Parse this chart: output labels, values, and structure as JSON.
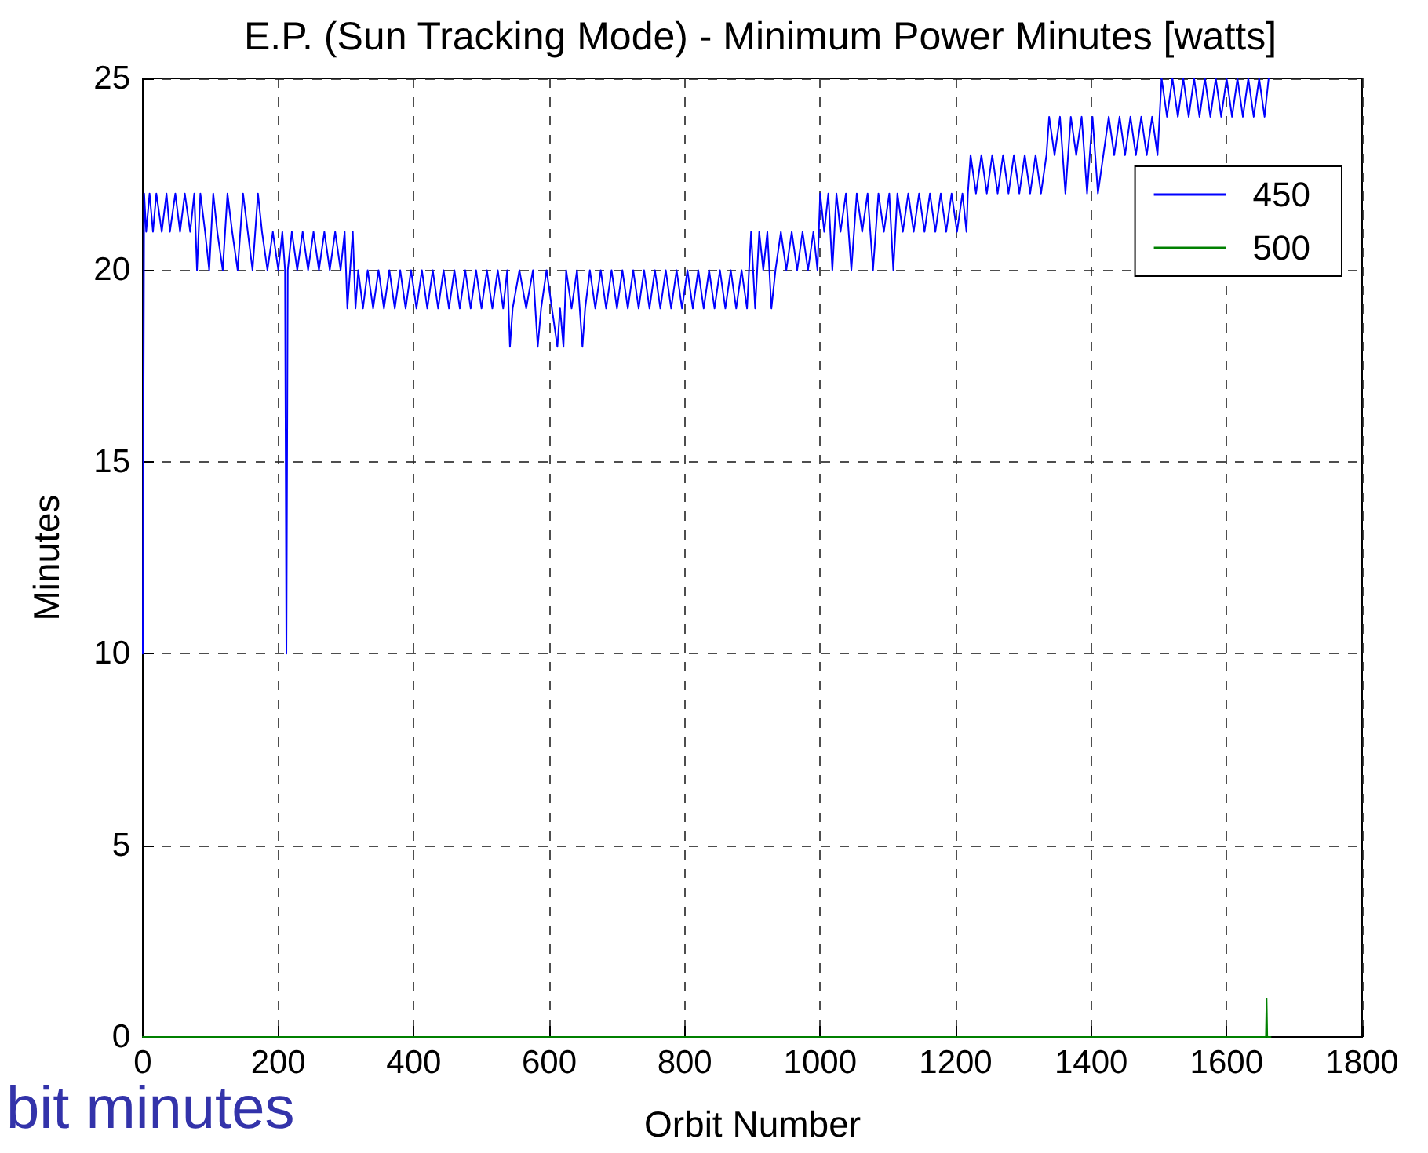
{
  "chart_data": {
    "type": "line",
    "title": "E.P. (Sun Tracking Mode) - Minimum Power Minutes [watts]",
    "xlabel": "Orbit Number",
    "ylabel": "Minutes",
    "annotations": [
      "bit minutes"
    ],
    "xlim": [
      0,
      1800
    ],
    "xticks": [
      0,
      200,
      400,
      600,
      800,
      1000,
      1200,
      1400,
      1600,
      1800
    ],
    "ylim": [
      0,
      25
    ],
    "yticks": [
      0,
      5,
      10,
      15,
      20,
      25
    ],
    "grid": true,
    "legend": "top right",
    "marker": "none",
    "line_style": "solid",
    "series": [
      {
        "name": "450",
        "color": "#0000ff",
        "x": [
          0,
          2,
          5,
          10,
          15,
          20,
          28,
          35,
          40,
          48,
          55,
          62,
          70,
          76,
          80,
          85,
          92,
          98,
          104,
          110,
          118,
          125,
          132,
          140,
          148,
          155,
          162,
          170,
          176,
          184,
          192,
          200,
          206,
          210,
          212,
          214,
          220,
          228,
          236,
          244,
          252,
          260,
          268,
          276,
          284,
          292,
          298,
          302,
          306,
          310,
          314,
          318,
          325,
          332,
          340,
          348,
          356,
          364,
          372,
          380,
          388,
          396,
          404,
          412,
          420,
          428,
          436,
          444,
          452,
          460,
          468,
          476,
          484,
          492,
          500,
          508,
          516,
          524,
          532,
          538,
          542,
          546,
          556,
          566,
          576,
          583,
          588,
          596,
          604,
          612,
          616,
          621,
          625,
          633,
          641,
          649,
          653,
          660,
          668,
          676,
          684,
          692,
          700,
          708,
          716,
          724,
          732,
          740,
          748,
          756,
          764,
          772,
          780,
          788,
          796,
          804,
          812,
          820,
          828,
          836,
          844,
          852,
          860,
          868,
          876,
          884,
          892,
          898,
          904,
          910,
          916,
          922,
          928,
          934,
          942,
          950,
          958,
          966,
          974,
          982,
          990,
          996,
          1000,
          1006,
          1012,
          1018,
          1024,
          1030,
          1038,
          1046,
          1054,
          1062,
          1070,
          1078,
          1086,
          1094,
          1102,
          1108,
          1114,
          1122,
          1130,
          1138,
          1146,
          1154,
          1162,
          1170,
          1178,
          1186,
          1194,
          1202,
          1210,
          1216,
          1218,
          1222,
          1230,
          1238,
          1246,
          1254,
          1262,
          1270,
          1278,
          1286,
          1294,
          1302,
          1310,
          1318,
          1326,
          1334,
          1338,
          1346,
          1354,
          1362,
          1370,
          1378,
          1386,
          1394,
          1402,
          1410,
          1418,
          1426,
          1434,
          1442,
          1450,
          1458,
          1466,
          1474,
          1482,
          1490,
          1498,
          1504,
          1512,
          1520,
          1528,
          1536,
          1544,
          1552,
          1560,
          1568,
          1576,
          1584,
          1592,
          1600,
          1608,
          1616,
          1624,
          1632,
          1640,
          1648,
          1656,
          1662
        ],
        "values": [
          10,
          22,
          21,
          22,
          21,
          22,
          21,
          22,
          21,
          22,
          21,
          22,
          21,
          22,
          20,
          22,
          21,
          20,
          22,
          21,
          20,
          22,
          21,
          20,
          22,
          21,
          20,
          22,
          21,
          20,
          21,
          20,
          21,
          20,
          10,
          20,
          21,
          20,
          21,
          20,
          21,
          20,
          21,
          20,
          21,
          20,
          21,
          19,
          20,
          21,
          19,
          20,
          19,
          20,
          19,
          20,
          19,
          20,
          19,
          20,
          19,
          20,
          19,
          20,
          19,
          20,
          19,
          20,
          19,
          20,
          19,
          20,
          19,
          20,
          19,
          20,
          19,
          20,
          19,
          20,
          18,
          19,
          20,
          19,
          20,
          18,
          19,
          20,
          19,
          18,
          19,
          18,
          20,
          19,
          20,
          18,
          19,
          20,
          19,
          20,
          19,
          20,
          19,
          20,
          19,
          20,
          19,
          20,
          19,
          20,
          19,
          20,
          19,
          20,
          19,
          20,
          19,
          20,
          19,
          20,
          19,
          20,
          19,
          20,
          19,
          20,
          19,
          21,
          19,
          21,
          20,
          21,
          19,
          20,
          21,
          20,
          21,
          20,
          21,
          20,
          21,
          20,
          22,
          21,
          22,
          20,
          22,
          21,
          22,
          20,
          22,
          21,
          22,
          20,
          22,
          21,
          22,
          20,
          22,
          21,
          22,
          21,
          22,
          21,
          22,
          21,
          22,
          21,
          22,
          21,
          22,
          21,
          22,
          23,
          22,
          23,
          22,
          23,
          22,
          23,
          22,
          23,
          22,
          23,
          22,
          23,
          22,
          23,
          24,
          23,
          24,
          22,
          24,
          23,
          24,
          22,
          24,
          22,
          23,
          24,
          23,
          24,
          23,
          24,
          23,
          24,
          23,
          24,
          23,
          25,
          24,
          25,
          24,
          25,
          24,
          25,
          24,
          25,
          24,
          25,
          24,
          25,
          24,
          25,
          24,
          25,
          24,
          25,
          24,
          25
        ]
      },
      {
        "name": "500",
        "color": "#008000",
        "x": [
          0,
          1658,
          1659,
          1660,
          1665
        ],
        "values": [
          0,
          0,
          1,
          0,
          0
        ]
      }
    ]
  }
}
